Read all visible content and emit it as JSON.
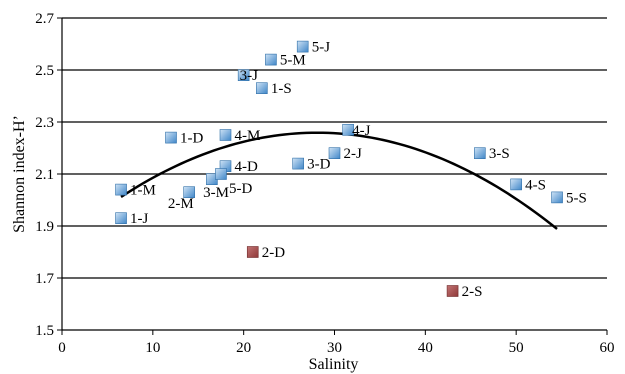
{
  "chart_data": {
    "type": "scatter",
    "title": "",
    "xlabel": "Salinity",
    "ylabel": "Shannon index-H’",
    "xlim": [
      0,
      60
    ],
    "ylim": [
      1.5,
      2.7
    ],
    "x_ticks": [
      "0",
      "10",
      "20",
      "30",
      "40",
      "50",
      "60"
    ],
    "y_ticks": [
      "1.5",
      "1.7",
      "1.9",
      "2.1",
      "2.3",
      "2.5",
      "2.7"
    ],
    "grid": "horizontal",
    "colors": {
      "normal": "#5b9bd5",
      "outlier": "#a04a4a",
      "grid": "#000000",
      "trend": "#000000"
    },
    "series": [
      {
        "points": [
          {
            "x": 6.5,
            "y": 2.04,
            "label": "1-M"
          },
          {
            "x": 6.5,
            "y": 1.93,
            "label": "1-J"
          },
          {
            "x": 12,
            "y": 2.24,
            "label": "1-D"
          },
          {
            "x": 22,
            "y": 2.43,
            "label": "1-S"
          },
          {
            "x": 14,
            "y": 2.03,
            "label": "3-M"
          },
          {
            "x": 16.5,
            "y": 2.08,
            "label": "2-M"
          },
          {
            "x": 18,
            "y": 2.25,
            "label": "4-M"
          },
          {
            "x": 18,
            "y": 2.13,
            "label": "4-D"
          },
          {
            "x": 17.5,
            "y": 2.1,
            "label": "5-D"
          },
          {
            "x": 20,
            "y": 2.48,
            "label": "3-J"
          },
          {
            "x": 23,
            "y": 2.54,
            "label": "5-M"
          },
          {
            "x": 26.5,
            "y": 2.59,
            "label": "5-J"
          },
          {
            "x": 26,
            "y": 2.14,
            "label": "3-D"
          },
          {
            "x": 30,
            "y": 2.18,
            "label": "2-J"
          },
          {
            "x": 31.5,
            "y": 2.27,
            "label": "4-J"
          },
          {
            "x": 46,
            "y": 2.18,
            "label": "3-S"
          },
          {
            "x": 50,
            "y": 2.06,
            "label": "4-S"
          },
          {
            "x": 54.5,
            "y": 2.01,
            "label": "5-S"
          }
        ]
      },
      {
        "points": [
          {
            "x": 21,
            "y": 1.8,
            "label": "2-D"
          },
          {
            "x": 43,
            "y": 1.65,
            "label": "2-S"
          }
        ]
      }
    ],
    "trendline": {
      "type": "polynomial",
      "x_start": 6.5,
      "x_end": 54.5,
      "points": [
        {
          "x": 6.5,
          "y": 2.01
        },
        {
          "x": 15,
          "y": 2.17
        },
        {
          "x": 27,
          "y": 2.26
        },
        {
          "x": 40,
          "y": 2.18
        },
        {
          "x": 54.5,
          "y": 1.89
        }
      ]
    }
  }
}
